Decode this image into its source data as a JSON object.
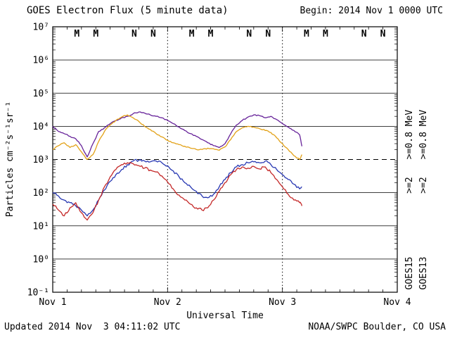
{
  "title": "GOES Electron Flux (5 minute data)",
  "begin_label": "Begin: 2014 Nov 1 0000 UTC",
  "footer": {
    "updated": "Updated 2014 Nov  3 04:11:02 UTC",
    "credit": "NOAA/SWPC Boulder, CO USA"
  },
  "chart_data": {
    "type": "line",
    "title": "GOES Electron Flux (5 minute data)",
    "xlabel": "Universal Time",
    "ylabel": "Particles cm⁻²s⁻¹sr⁻¹",
    "y_scale": "log10",
    "y_log_range": [
      -1,
      7
    ],
    "x_range_days": [
      0,
      3
    ],
    "x_ticks": [
      {
        "day": 0,
        "label": "Nov 1"
      },
      {
        "day": 1,
        "label": "Nov 2"
      },
      {
        "day": 2,
        "label": "Nov 3"
      },
      {
        "day": 3,
        "label": "Nov 4"
      }
    ],
    "threshold": {
      "value": 1000,
      "style": "dashed"
    },
    "grid": {
      "horizontal_decades": true,
      "vertical_day_dotted": true
    },
    "x": [
      0,
      0.05,
      0.1,
      0.15,
      0.2,
      0.25,
      0.3,
      0.35,
      0.4,
      0.45,
      0.5,
      0.55,
      0.6,
      0.65,
      0.7,
      0.75,
      0.8,
      0.85,
      0.9,
      0.95,
      1,
      1.05,
      1.1,
      1.15,
      1.2,
      1.25,
      1.3,
      1.35,
      1.4,
      1.45,
      1.5,
      1.55,
      1.6,
      1.65,
      1.7,
      1.75,
      1.8,
      1.85,
      1.9,
      1.95,
      2,
      2.05,
      2.1,
      2.15,
      2.17
    ],
    "series": [
      {
        "id": "goes15-gt0p8",
        "satellite": "GOES15",
        "energy": ">=0.8 MeV",
        "color": "#662299",
        "values": [
          10000,
          7000,
          6000,
          5000,
          4200,
          2600,
          1200,
          3000,
          7000,
          9000,
          12000,
          15000,
          18000,
          20000,
          24000,
          27000,
          25000,
          22000,
          20000,
          18000,
          15000,
          12000,
          9500,
          7500,
          6000,
          5000,
          4000,
          3200,
          2600,
          2300,
          3000,
          6000,
          11000,
          15000,
          19000,
          22000,
          21000,
          18000,
          20000,
          16000,
          12000,
          9500,
          7500,
          5500,
          2500
        ]
      },
      {
        "id": "goes13-gt0p8",
        "satellite": "GOES13",
        "energy": ">=0.8 MeV",
        "color": "#E2A117",
        "values": [
          2000,
          2600,
          3200,
          2300,
          2800,
          1700,
          1000,
          1400,
          3500,
          7000,
          11000,
          15000,
          19000,
          22000,
          18000,
          14000,
          10000,
          8000,
          6000,
          4800,
          3800,
          3200,
          2800,
          2500,
          2200,
          2000,
          2000,
          2200,
          2100,
          1900,
          2400,
          4000,
          7000,
          9000,
          10000,
          9500,
          8500,
          7500,
          6500,
          4500,
          3000,
          2000,
          1300,
          1000,
          1400
        ]
      },
      {
        "id": "goes15-gt2",
        "satellite": "GOES15",
        "energy": ">=2",
        "color": "#2737B2",
        "values": [
          100,
          80,
          60,
          50,
          40,
          30,
          20,
          30,
          60,
          120,
          220,
          350,
          500,
          700,
          900,
          950,
          900,
          850,
          900,
          800,
          650,
          450,
          300,
          200,
          150,
          110,
          80,
          70,
          90,
          150,
          250,
          400,
          600,
          700,
          800,
          850,
          800,
          900,
          700,
          500,
          350,
          250,
          180,
          130,
          150
        ]
      },
      {
        "id": "goes13-gt2",
        "satellite": "GOES13",
        "energy": ">=2",
        "color": "#C42828",
        "values": [
          45,
          30,
          20,
          35,
          50,
          25,
          15,
          25,
          60,
          150,
          300,
          500,
          700,
          800,
          750,
          650,
          550,
          480,
          420,
          320,
          210,
          130,
          85,
          60,
          45,
          35,
          30,
          35,
          60,
          110,
          200,
          350,
          500,
          600,
          550,
          620,
          520,
          600,
          400,
          250,
          150,
          90,
          60,
          50,
          40
        ]
      }
    ],
    "markers": [
      {
        "t": 0.21,
        "label": "M",
        "satellite": "GOES13",
        "color": "#C42828"
      },
      {
        "t": 0.375,
        "label": "M",
        "satellite": "GOES15",
        "color": "#2737B2"
      },
      {
        "t": 0.71,
        "label": "N",
        "satellite": "GOES13",
        "color": "#C42828"
      },
      {
        "t": 0.875,
        "label": "N",
        "satellite": "GOES15",
        "color": "#2737B2"
      },
      {
        "t": 1.21,
        "label": "M",
        "satellite": "GOES13",
        "color": "#C42828"
      },
      {
        "t": 1.375,
        "label": "M",
        "satellite": "GOES15",
        "color": "#2737B2"
      },
      {
        "t": 1.71,
        "label": "N",
        "satellite": "GOES13",
        "color": "#C42828"
      },
      {
        "t": 1.875,
        "label": "N",
        "satellite": "GOES15",
        "color": "#2737B2"
      },
      {
        "t": 2.21,
        "label": "M",
        "satellite": "GOES13",
        "color": "#C42828"
      },
      {
        "t": 2.375,
        "label": "M",
        "satellite": "GOES15",
        "color": "#2737B2"
      },
      {
        "t": 2.71,
        "label": "N",
        "satellite": "GOES13",
        "color": "#C42828"
      },
      {
        "t": 2.875,
        "label": "N",
        "satellite": "GOES15",
        "color": "#2737B2"
      }
    ],
    "legend": {
      "position": "right-rotated",
      "columns": [
        {
          "satellite": "GOES15",
          "items": [
            {
              "label": ">=0.8 MeV",
              "color": "#662299"
            },
            {
              "label": ">=2",
              "color": "#2737B2"
            }
          ]
        },
        {
          "satellite": "GOES13",
          "items": [
            {
              "label": ">=0.8 MeV",
              "color": "#E2A117"
            },
            {
              "label": ">=2",
              "color": "#C42828"
            }
          ]
        }
      ]
    }
  }
}
